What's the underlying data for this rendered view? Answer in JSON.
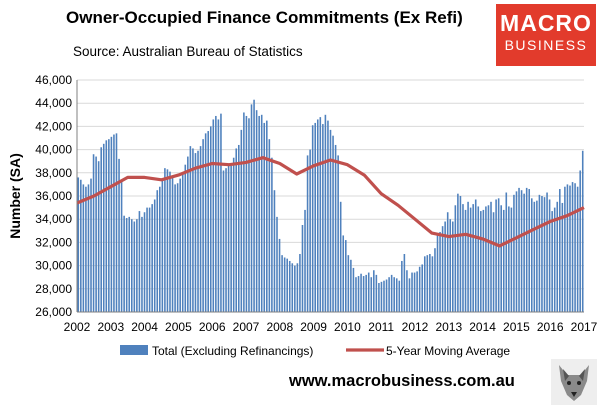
{
  "header": {
    "title": "Owner-Occupied Finance Commitments (Ex Refi)",
    "subtitle": "Source: Australian  Bureau of Statistics",
    "logo_line1": "MACRO",
    "logo_line2": "BUSINESS"
  },
  "footer": {
    "url": "www.macrobusiness.com.au",
    "icon": "wolf-icon"
  },
  "colors": {
    "bar": "#4f81bd",
    "line": "#c0504d",
    "logo": "#e23b2c"
  },
  "chart_data": {
    "type": "bar",
    "ylabel": "Number (SA)",
    "xlabel": "",
    "ylim": [
      26000,
      46000
    ],
    "yticks": [
      "26,000",
      "28,000",
      "30,000",
      "32,000",
      "34,000",
      "36,000",
      "38,000",
      "40,000",
      "42,000",
      "44,000",
      "46,000"
    ],
    "xticks": [
      "2002",
      "2003",
      "2004",
      "2005",
      "2006",
      "2007",
      "2008",
      "2009",
      "2010",
      "2011",
      "2012",
      "2013",
      "2014",
      "2015",
      "2016",
      "2017"
    ],
    "x_start": "2002-01",
    "grid": true,
    "legend_position": "bottom",
    "series": [
      {
        "name": "Total (Excluding Refinancings)",
        "type": "bar",
        "values": [
          37600,
          37400,
          37000,
          36800,
          37000,
          37500,
          39600,
          39400,
          39000,
          40200,
          40500,
          40800,
          40900,
          41100,
          41300,
          41400,
          39200,
          37300,
          34300,
          34100,
          34200,
          34000,
          33800,
          34000,
          34700,
          34200,
          34600,
          35000,
          35000,
          35300,
          35700,
          36500,
          36800,
          37500,
          38400,
          38300,
          38100,
          37600,
          37000,
          37100,
          37500,
          38000,
          38700,
          39400,
          40300,
          40100,
          39700,
          39900,
          40300,
          40900,
          41400,
          41600,
          42000,
          42600,
          42900,
          42600,
          43100,
          38200,
          38400,
          38800,
          38600,
          39300,
          40100,
          40400,
          41700,
          43200,
          42900,
          42700,
          43900,
          44300,
          43400,
          42900,
          43000,
          42300,
          42500,
          40900,
          39300,
          36500,
          34200,
          32300,
          30900,
          30700,
          30600,
          30400,
          30200,
          30000,
          30200,
          31000,
          33500,
          34800,
          39500,
          40000,
          42100,
          42300,
          42600,
          42800,
          42200,
          43000,
          42500,
          41700,
          41200,
          40400,
          39500,
          35500,
          32600,
          32200,
          30900,
          30500,
          29800,
          29000,
          29100,
          29300,
          29100,
          29200,
          29400,
          29000,
          29600,
          29200,
          28500,
          28600,
          28700,
          28800,
          29000,
          29200,
          29000,
          28900,
          28700,
          30400,
          31000,
          29600,
          28900,
          29400,
          29400,
          29500,
          29900,
          30100,
          30800,
          30900,
          31000,
          30800,
          31500,
          32600,
          32900,
          33400,
          33800,
          34600,
          34000,
          33800,
          35200,
          36200,
          36000,
          35300,
          34800,
          35500,
          35000,
          35300,
          35700,
          35100,
          34700,
          34800,
          35100,
          35200,
          35500,
          34600,
          35700,
          35800,
          35200,
          34800,
          36300,
          35100,
          35000,
          36100,
          36400,
          36700,
          36500,
          36200,
          36700,
          36600,
          35800,
          35500,
          35600,
          36100,
          36000,
          35900,
          36300,
          35700,
          34700,
          35000,
          35500,
          36600,
          35400,
          36800,
          37000,
          36900,
          37200,
          37100,
          36800,
          38200,
          39900
        ]
      },
      {
        "name": "5-Year Moving Average",
        "type": "line",
        "points": [
          [
            2002.0,
            35400
          ],
          [
            2002.5,
            36000
          ],
          [
            2003.0,
            36800
          ],
          [
            2003.5,
            37600
          ],
          [
            2004.0,
            37600
          ],
          [
            2004.5,
            37400
          ],
          [
            2005.0,
            37800
          ],
          [
            2005.5,
            38400
          ],
          [
            2006.0,
            38800
          ],
          [
            2006.5,
            38700
          ],
          [
            2007.0,
            38900
          ],
          [
            2007.5,
            39300
          ],
          [
            2008.0,
            38800
          ],
          [
            2008.5,
            37900
          ],
          [
            2009.0,
            38600
          ],
          [
            2009.5,
            39100
          ],
          [
            2010.0,
            38700
          ],
          [
            2010.5,
            37800
          ],
          [
            2011.0,
            36200
          ],
          [
            2011.5,
            35200
          ],
          [
            2012.0,
            34000
          ],
          [
            2012.5,
            32800
          ],
          [
            2013.0,
            32500
          ],
          [
            2013.5,
            32700
          ],
          [
            2014.0,
            32300
          ],
          [
            2014.5,
            31700
          ],
          [
            2015.0,
            32400
          ],
          [
            2015.5,
            33100
          ],
          [
            2016.0,
            33800
          ],
          [
            2016.5,
            34300
          ],
          [
            2017.0,
            35000
          ]
        ]
      }
    ]
  }
}
